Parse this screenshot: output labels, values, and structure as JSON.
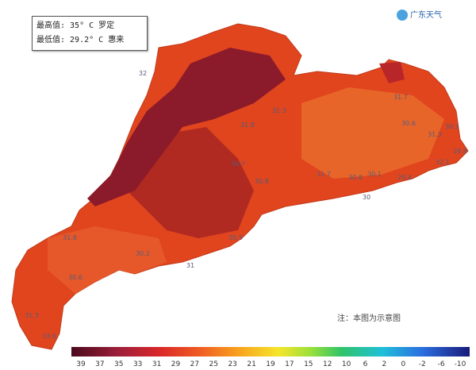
{
  "info": {
    "max": "最高值: 35° C 罗定",
    "min": "最低值: 29.2° C 惠来"
  },
  "logo": "广东天气",
  "note": "注：本图为示意图",
  "map_labels": [
    "32",
    "31.7",
    "31.8",
    "31.3",
    "30.7",
    "30.8",
    "31.7",
    "30.8",
    "30.1",
    "29.4",
    "30",
    "30.6",
    "30.1",
    "31.3",
    "29.8",
    "32.1",
    "30.2",
    "31",
    "30.5",
    "31.8",
    "30.6",
    "31.3",
    "33.6"
  ],
  "scale": [
    39,
    37,
    35,
    33,
    31,
    29,
    27,
    25,
    23,
    21,
    19,
    17,
    15,
    12,
    10,
    6,
    2,
    0,
    -2,
    -6,
    -10
  ]
}
